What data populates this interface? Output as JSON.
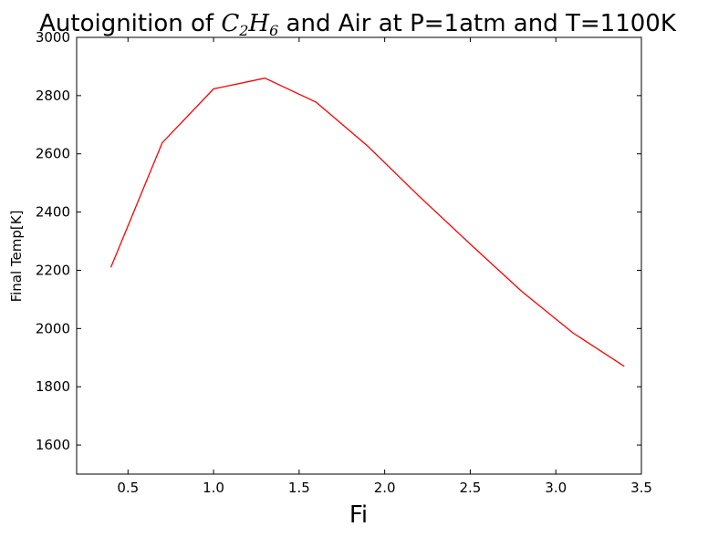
{
  "chart_data": {
    "type": "line",
    "title": {
      "before": "Autoignition of ",
      "math_base1": "C",
      "math_sub1": "2",
      "math_base2": "H",
      "math_sub2": "6",
      "after": " and Air at P=1atm and T=1100K"
    },
    "xlabel": "Fi",
    "ylabel": "Final Temp[K]",
    "xlim": [
      0.2,
      3.5
    ],
    "ylim": [
      1500,
      3000
    ],
    "xticks": [
      "0.5",
      "1.0",
      "1.5",
      "2.0",
      "2.5",
      "3.0",
      "3.5"
    ],
    "yticks": [
      "1600",
      "1800",
      "2000",
      "2200",
      "2400",
      "2600",
      "2800",
      "3000"
    ],
    "grid": false,
    "series": [
      {
        "color": "#ff0000",
        "x": [
          0.4,
          0.7,
          1.0,
          1.3,
          1.6,
          1.9,
          2.2,
          2.5,
          2.8,
          3.1,
          3.4
        ],
        "y": [
          2210,
          2638,
          2823,
          2860,
          2777,
          2627,
          2455,
          2290,
          2128,
          1985,
          1870
        ]
      }
    ]
  }
}
